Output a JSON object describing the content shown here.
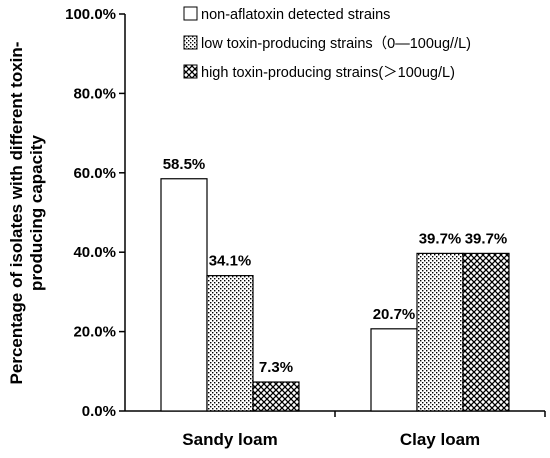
{
  "chart_data": {
    "type": "bar",
    "title": "",
    "xlabel": "",
    "ylabel_lines": [
      "Percentage of isolates with different toxin-",
      "producing capacity"
    ],
    "ylim": [
      0,
      100
    ],
    "y_ticks": [
      0,
      20,
      40,
      60,
      80,
      100
    ],
    "y_tick_labels": [
      "0.0%",
      "20.0%",
      "40.0%",
      "60.0%",
      "80.0%",
      "100.0%"
    ],
    "grid": false,
    "legend_position": "top-right",
    "categories": [
      "Sandy loam",
      "Clay loam"
    ],
    "series": [
      {
        "name": "non-aflatoxin detected strains",
        "pattern": "white",
        "values": [
          58.5,
          20.7
        ],
        "labels": [
          "58.5%",
          "20.7%"
        ]
      },
      {
        "name": "low toxin-producing strains（0—100ug//L)",
        "pattern": "dots",
        "values": [
          34.1,
          39.7
        ],
        "labels": [
          "34.1%",
          "39.7%"
        ]
      },
      {
        "name": "high toxin-producing strains(＞100ug/L)",
        "pattern": "crosshatch",
        "values": [
          7.3,
          39.7
        ],
        "labels": [
          "7.3%",
          "39.7%"
        ]
      }
    ]
  }
}
